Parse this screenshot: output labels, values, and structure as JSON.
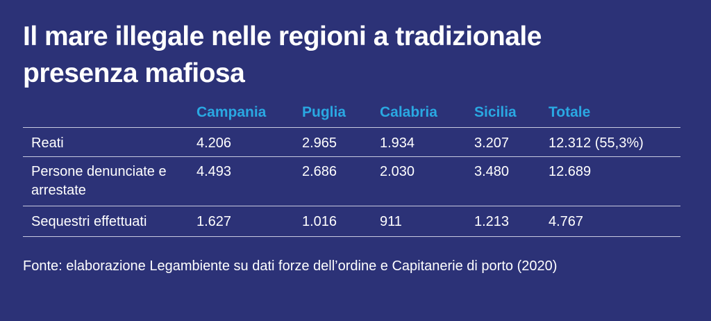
{
  "header": {
    "title": "Il mare illegale nelle regioni a tradizionale presenza mafiosa"
  },
  "table": {
    "columns": [
      "Campania",
      "Puglia",
      "Calabria",
      "Sicilia",
      "Totale"
    ],
    "rows": [
      [
        "Reati",
        "4.206",
        "2.965",
        "1.934",
        "3.207",
        "12.312 (55,3%)"
      ],
      [
        "Persone denunciate e arrestate",
        "4.493",
        "2.686",
        "2.030",
        "3.480",
        "12.689"
      ],
      [
        "Sequestri effettuati",
        "1.627",
        "1.016",
        "911",
        "1.213",
        "4.767"
      ]
    ]
  },
  "footer": {
    "source": "Fonte: elaborazione Legambiente su dati forze dell’ordine e Capitanerie di porto (2020)"
  }
}
